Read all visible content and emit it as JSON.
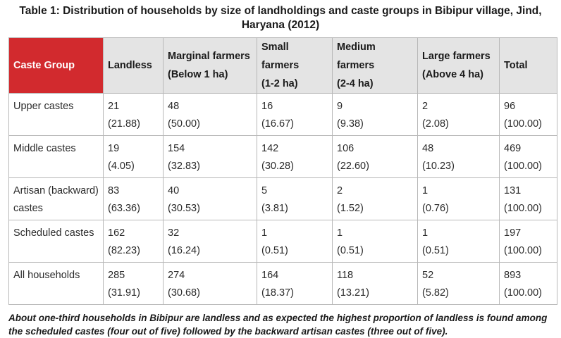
{
  "title": "Table 1: Distribution of households by size of landholdings and caste groups in Bibipur village, Jind, Haryana (2012)",
  "headers": [
    {
      "line1": "Caste Group",
      "line2": ""
    },
    {
      "line1": "Landless",
      "line2": ""
    },
    {
      "line1": "Marginal farmers",
      "line2": "(Below 1 ha)"
    },
    {
      "line1": "Small farmers",
      "line2": "(1-2 ha)"
    },
    {
      "line1": "Medium farmers",
      "line2": "(2-4 ha)"
    },
    {
      "line1": "Large farmers",
      "line2": "(Above 4 ha)"
    },
    {
      "line1": "Total",
      "line2": ""
    }
  ],
  "rows": [
    {
      "group": [
        "Upper castes",
        ""
      ],
      "cells": [
        [
          "21",
          "(21.88)"
        ],
        [
          "48",
          "(50.00)"
        ],
        [
          "16",
          "(16.67)"
        ],
        [
          "9",
          "(9.38)"
        ],
        [
          "2",
          "(2.08)"
        ],
        [
          "96",
          "(100.00)"
        ]
      ]
    },
    {
      "group": [
        "Middle castes",
        ""
      ],
      "cells": [
        [
          "19",
          "(4.05)"
        ],
        [
          "154",
          "(32.83)"
        ],
        [
          "142",
          "(30.28)"
        ],
        [
          "106",
          "(22.60)"
        ],
        [
          "48",
          "(10.23)"
        ],
        [
          "469",
          "(100.00)"
        ]
      ]
    },
    {
      "group": [
        "Artisan (backward)",
        "castes"
      ],
      "cells": [
        [
          "83",
          "(63.36)"
        ],
        [
          "40",
          "(30.53)"
        ],
        [
          "5",
          "(3.81)"
        ],
        [
          "2",
          "(1.52)"
        ],
        [
          "1",
          "(0.76)"
        ],
        [
          "131",
          "(100.00)"
        ]
      ]
    },
    {
      "group": [
        "Scheduled castes",
        ""
      ],
      "cells": [
        [
          "162",
          "(82.23)"
        ],
        [
          "32",
          "(16.24)"
        ],
        [
          "1",
          "(0.51)"
        ],
        [
          "1",
          "(0.51)"
        ],
        [
          "1",
          "(0.51)"
        ],
        [
          "197",
          "(100.00)"
        ]
      ]
    },
    {
      "group": [
        "All households",
        ""
      ],
      "cells": [
        [
          "285",
          "(31.91)"
        ],
        [
          "274",
          "(30.68)"
        ],
        [
          "164",
          "(18.37)"
        ],
        [
          "118",
          "(13.21)"
        ],
        [
          "52",
          "(5.82)"
        ],
        [
          "893",
          "(100.00)"
        ]
      ]
    }
  ],
  "note": "About one-third households in Bibipur are landless and as expected the highest proportion of landless is found among the scheduled castes (four out of five) followed by the backward artisan castes (three out of five).",
  "colors": {
    "header_accent": "#d22a2e",
    "header_bg": "#e4e4e4",
    "border": "#b8b8b8"
  }
}
